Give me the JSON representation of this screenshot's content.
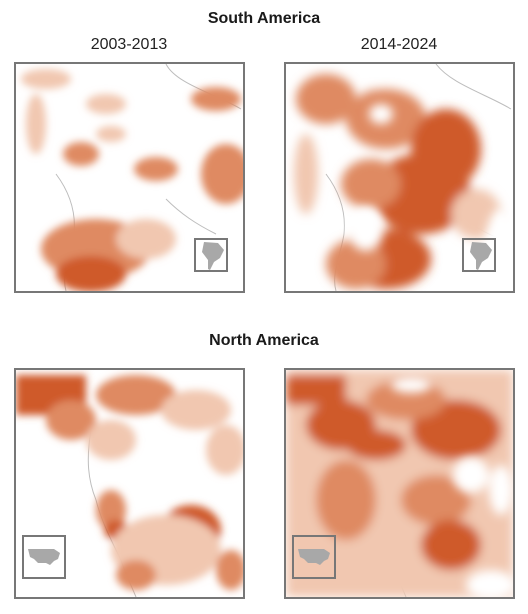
{
  "regions": [
    {
      "title": "South America",
      "periods": [
        "2003-2013",
        "2014-2024"
      ]
    },
    {
      "title": "North America",
      "periods": [
        "",
        ""
      ]
    }
  ],
  "colors": {
    "heavy": "#cf5a2a",
    "medium": "#df8a62",
    "light": "#f1c7b0",
    "faint": "#f8e2d6",
    "land": "#ffffff",
    "coast": "#9a9a9a",
    "inset_land": "#a8a8a8",
    "frame": "#777777"
  },
  "panels": {
    "sa_early": {
      "intensity": "low-medium, strongest in south-central area"
    },
    "sa_late": {
      "intensity": "high, widespread across central and southern area"
    },
    "na_early": {
      "intensity": "medium, strongest in northwest and south-central"
    },
    "na_late": {
      "intensity": "high, widespread across west and interior"
    }
  }
}
